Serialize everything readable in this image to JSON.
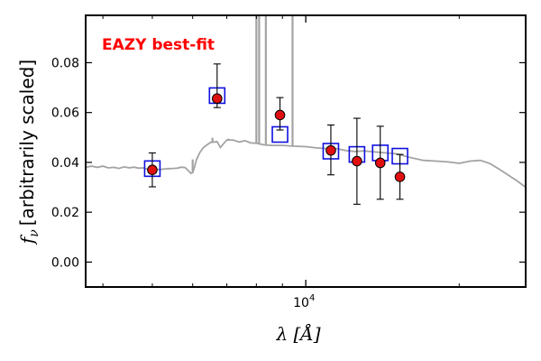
{
  "chart_data": {
    "type": "scatter",
    "annotation": "EAZY best-fit",
    "xlabel": "λ [Å]",
    "ylabel": "f_ν [arbitrarily scaled]",
    "xscale": "log",
    "xlim": [
      3700,
      27000
    ],
    "ylim": [
      -0.01,
      0.099
    ],
    "xtick_labels": [
      {
        "value": 10000,
        "label": "10",
        "exp": "4"
      }
    ],
    "ytick_labels": [
      {
        "value": 0.0,
        "label": "0.00"
      },
      {
        "value": 0.02,
        "label": "0.02"
      },
      {
        "value": 0.04,
        "label": "0.04"
      },
      {
        "value": 0.06,
        "label": "0.06"
      },
      {
        "value": 0.08,
        "label": "0.08"
      }
    ],
    "grid": false,
    "colors": {
      "template": "#a3a3a3",
      "model_box": "#1010e0",
      "observed": "#e01010",
      "annotation": "#ff0000",
      "errorbar": "#000000"
    },
    "series": [
      {
        "type": "line",
        "points": [
          [
            3700,
            0.038
          ],
          [
            3800,
            0.0385
          ],
          [
            3900,
            0.038
          ],
          [
            4000,
            0.0385
          ],
          [
            4100,
            0.0378
          ],
          [
            4200,
            0.038
          ],
          [
            4300,
            0.0376
          ],
          [
            4400,
            0.0382
          ],
          [
            4500,
            0.0378
          ],
          [
            4600,
            0.0381
          ],
          [
            4700,
            0.0377
          ],
          [
            4800,
            0.0378
          ],
          [
            4900,
            0.0372
          ],
          [
            5000,
            0.0377
          ],
          [
            5100,
            0.0371
          ],
          [
            5200,
            0.0372
          ],
          [
            5300,
            0.0374
          ],
          [
            5400,
            0.0375
          ],
          [
            5500,
            0.0376
          ],
          [
            5600,
            0.0377
          ],
          [
            5700,
            0.0381
          ],
          [
            5800,
            0.0379
          ],
          [
            5900,
            0.0364
          ],
          [
            5950,
            0.0356
          ],
          [
            6000,
            0.0359
          ],
          [
            6050,
            0.038
          ],
          [
            6100,
            0.041
          ],
          [
            6200,
            0.044
          ],
          [
            6300,
            0.046
          ],
          [
            6400,
            0.047
          ],
          [
            6500,
            0.048
          ],
          [
            6700,
            0.0483
          ],
          [
            6800,
            0.046
          ],
          [
            6900,
            0.0475
          ],
          [
            7000,
            0.049
          ],
          [
            7200,
            0.049
          ],
          [
            7400,
            0.0482
          ],
          [
            7600,
            0.0487
          ],
          [
            7800,
            0.0478
          ],
          [
            8000,
            0.0477
          ],
          [
            8300,
            0.047
          ],
          [
            8600,
            0.0468
          ],
          [
            9000,
            0.0468
          ],
          [
            9500,
            0.0465
          ],
          [
            10000,
            0.0463
          ],
          [
            10500,
            0.0458
          ],
          [
            11000,
            0.0455
          ],
          [
            11500,
            0.0455
          ],
          [
            12000,
            0.0447
          ],
          [
            12500,
            0.0444
          ],
          [
            13000,
            0.0446
          ],
          [
            14000,
            0.044
          ],
          [
            15000,
            0.0435
          ],
          [
            16000,
            0.042
          ],
          [
            17000,
            0.0408
          ],
          [
            18000,
            0.0405
          ],
          [
            19000,
            0.0402
          ],
          [
            20000,
            0.0396
          ],
          [
            21000,
            0.0405
          ],
          [
            22000,
            0.0408
          ],
          [
            23000,
            0.0395
          ],
          [
            24000,
            0.0372
          ],
          [
            25000,
            0.0348
          ],
          [
            26000,
            0.0325
          ],
          [
            27000,
            0.03
          ]
        ],
        "emission_lines": [
          {
            "x": 6000,
            "peak": 0.0412
          },
          {
            "x": 6560,
            "peak": 0.0499
          },
          {
            "x": 7050,
            "peak": 0.0495
          },
          {
            "x": 8000,
            "peak": 0.099
          },
          {
            "x": 8100,
            "peak": 0.099
          },
          {
            "x": 8350,
            "peak": 0.099
          },
          {
            "x": 9420,
            "peak": 0.099
          }
        ]
      },
      {
        "type": "scatter",
        "marker": "open-square",
        "points": [
          [
            5000,
            0.0375
          ],
          [
            6700,
            0.0668
          ],
          [
            8900,
            0.0512
          ],
          [
            11200,
            0.0445
          ],
          [
            12600,
            0.0432
          ],
          [
            14000,
            0.0438
          ],
          [
            15300,
            0.0425
          ]
        ]
      },
      {
        "type": "scatter",
        "marker": "filled-circle",
        "points": [
          {
            "x": 5000,
            "y": 0.037,
            "ylo": 0.0302,
            "yhi": 0.0438
          },
          {
            "x": 6700,
            "y": 0.0656,
            "ylo": 0.062,
            "yhi": 0.0795
          },
          {
            "x": 8900,
            "y": 0.059,
            "ylo": 0.053,
            "yhi": 0.066
          },
          {
            "x": 11200,
            "y": 0.0448,
            "ylo": 0.035,
            "yhi": 0.055
          },
          {
            "x": 12600,
            "y": 0.0405,
            "ylo": 0.0232,
            "yhi": 0.0577
          },
          {
            "x": 14000,
            "y": 0.0398,
            "ylo": 0.0252,
            "yhi": 0.0545
          },
          {
            "x": 15300,
            "y": 0.0342,
            "ylo": 0.0252,
            "yhi": 0.0432
          }
        ]
      }
    ]
  }
}
